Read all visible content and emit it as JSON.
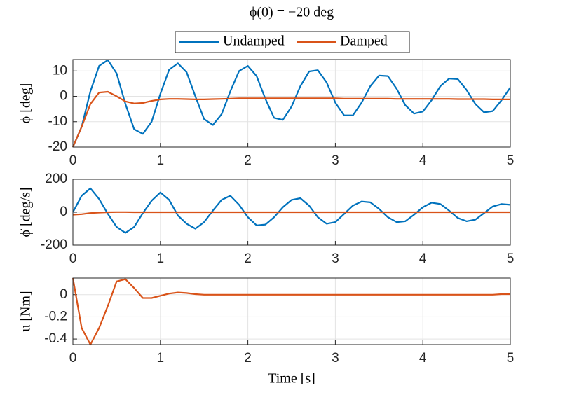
{
  "chart_data": [
    {
      "type": "line",
      "title": "ϕ(0) = −20 deg",
      "ylabel": "ϕ [deg]",
      "legend": "top",
      "grid": true,
      "x": [
        0,
        0.1,
        0.2,
        0.3,
        0.4,
        0.5,
        0.6,
        0.7,
        0.8,
        0.9,
        1,
        1.1,
        1.2,
        1.3,
        1.4,
        1.5,
        1.6,
        1.7,
        1.8,
        1.9,
        2,
        2.1,
        2.2,
        2.3,
        2.4,
        2.5,
        2.6,
        2.7,
        2.8,
        2.9,
        3,
        3.1,
        3.2,
        3.3,
        3.4,
        3.5,
        3.6,
        3.7,
        3.8,
        3.9,
        4,
        4.1,
        4.2,
        4.3,
        4.4,
        4.5,
        4.6,
        4.7,
        4.8,
        4.9,
        5
      ],
      "xlim": [
        0,
        5
      ],
      "xticks": [
        0,
        1,
        2,
        3,
        4,
        5
      ],
      "ylim": [
        -20,
        14.5
      ],
      "yticks": [
        -20,
        -10,
        0,
        10
      ],
      "series": [
        {
          "name": "Undamped",
          "color": "#0072bd",
          "values": [
            -20,
            -12,
            2,
            12,
            14.3,
            9,
            -3,
            -13,
            -14.8,
            -10,
            1,
            10.5,
            13,
            9.5,
            0,
            -9,
            -11.3,
            -7,
            2,
            10,
            12,
            8,
            -1,
            -8.5,
            -9.3,
            -4,
            4,
            9.8,
            10.3,
            5.5,
            -2.5,
            -7.5,
            -7.5,
            -2.5,
            4,
            8.2,
            8,
            3,
            -3.5,
            -6.8,
            -6,
            -1.5,
            4,
            7,
            6.8,
            2.5,
            -3,
            -6.3,
            -5.8,
            -1.5,
            3.5
          ]
        },
        {
          "name": "Damped",
          "color": "#d95319",
          "values": [
            -20,
            -12,
            -3,
            1.5,
            1.8,
            0,
            -2,
            -2.8,
            -2.6,
            -1.8,
            -1.2,
            -1,
            -1,
            -1.1,
            -1.2,
            -1.2,
            -1.1,
            -1,
            -0.9,
            -0.8,
            -0.8,
            -0.8,
            -0.8,
            -0.8,
            -0.8,
            -0.8,
            -0.8,
            -0.8,
            -0.8,
            -0.8,
            -0.8,
            -0.9,
            -0.9,
            -0.9,
            -0.9,
            -0.9,
            -0.9,
            -1,
            -1,
            -1,
            -1,
            -1,
            -1,
            -1,
            -1.1,
            -1.1,
            -1.1,
            -1.1,
            -1.2,
            -1.2,
            -1.2
          ]
        }
      ]
    },
    {
      "type": "line",
      "ylabel": "ϕ̇ [deg/s]",
      "grid": true,
      "x": [
        0,
        0.1,
        0.2,
        0.3,
        0.4,
        0.5,
        0.6,
        0.7,
        0.8,
        0.9,
        1,
        1.1,
        1.2,
        1.3,
        1.4,
        1.5,
        1.6,
        1.7,
        1.8,
        1.9,
        2,
        2.1,
        2.2,
        2.3,
        2.4,
        2.5,
        2.6,
        2.7,
        2.8,
        2.9,
        3,
        3.1,
        3.2,
        3.3,
        3.4,
        3.5,
        3.6,
        3.7,
        3.8,
        3.9,
        4,
        4.1,
        4.2,
        4.3,
        4.4,
        4.5,
        4.6,
        4.7,
        4.8,
        4.9,
        5
      ],
      "xlim": [
        0,
        5
      ],
      "xticks": [
        0,
        1,
        2,
        3,
        4,
        5
      ],
      "ylim": [
        -200,
        200
      ],
      "yticks": [
        -200,
        0,
        200
      ],
      "series": [
        {
          "color": "#0072bd",
          "values": [
            0,
            100,
            145,
            80,
            -10,
            -90,
            -125,
            -90,
            -5,
            70,
            120,
            75,
            -20,
            -70,
            -100,
            -60,
            10,
            75,
            100,
            45,
            -30,
            -80,
            -75,
            -30,
            30,
            75,
            85,
            40,
            -30,
            -70,
            -60,
            -10,
            40,
            65,
            60,
            20,
            -30,
            -60,
            -55,
            -15,
            30,
            58,
            50,
            10,
            -35,
            -55,
            -45,
            -5,
            35,
            50,
            45
          ]
        },
        {
          "color": "#d95319",
          "values": [
            -15,
            -12,
            -5,
            -2,
            0,
            1,
            1,
            0,
            0,
            0,
            0,
            0,
            0,
            0,
            0,
            0,
            0,
            0,
            0,
            0,
            0,
            0,
            0,
            0,
            0,
            0,
            0,
            0,
            0,
            0,
            0,
            0,
            0,
            0,
            0,
            0,
            0,
            0,
            0,
            0,
            0,
            0,
            0,
            0,
            0,
            0,
            0,
            0,
            0,
            0,
            0
          ]
        }
      ]
    },
    {
      "type": "line",
      "ylabel": "u [Nm]",
      "xlabel": "Time [s]",
      "grid": true,
      "x": [
        0,
        0.1,
        0.2,
        0.3,
        0.4,
        0.5,
        0.6,
        0.7,
        0.8,
        0.9,
        1,
        1.1,
        1.2,
        1.3,
        1.4,
        1.5,
        1.6,
        1.7,
        1.8,
        1.9,
        2,
        2.1,
        2.2,
        2.3,
        2.4,
        2.5,
        2.6,
        2.7,
        2.8,
        2.9,
        3,
        3.1,
        3.2,
        3.3,
        3.4,
        3.5,
        3.6,
        3.7,
        3.8,
        3.9,
        4,
        4.1,
        4.2,
        4.3,
        4.4,
        4.5,
        4.6,
        4.7,
        4.8,
        4.9,
        5
      ],
      "xlim": [
        0,
        5
      ],
      "xticks": [
        0,
        1,
        2,
        3,
        4,
        5
      ],
      "ylim": [
        -0.45,
        0.15
      ],
      "yticks": [
        -0.4,
        -0.2,
        0
      ],
      "series": [
        {
          "color": "#d95319",
          "values": [
            0.15,
            -0.3,
            -0.45,
            -0.3,
            -0.1,
            0.12,
            0.14,
            0.06,
            -0.03,
            -0.03,
            -0.01,
            0.01,
            0.02,
            0.015,
            0.005,
            0,
            0,
            0,
            0,
            0,
            0,
            0,
            0,
            0,
            0,
            0,
            0,
            0,
            0,
            0,
            0,
            0,
            0,
            0,
            0,
            0,
            0,
            0,
            0,
            0,
            0,
            0,
            0,
            0,
            0,
            0,
            0,
            0,
            0,
            0.005,
            0.005
          ]
        }
      ]
    }
  ]
}
